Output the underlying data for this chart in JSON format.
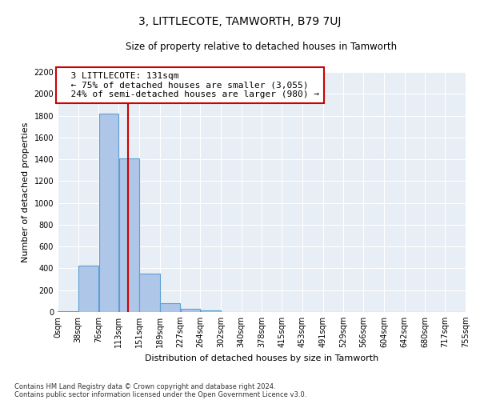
{
  "title": "3, LITTLECOTE, TAMWORTH, B79 7UJ",
  "subtitle": "Size of property relative to detached houses in Tamworth",
  "xlabel": "Distribution of detached houses by size in Tamworth",
  "ylabel": "Number of detached properties",
  "footer_line1": "Contains HM Land Registry data © Crown copyright and database right 2024.",
  "footer_line2": "Contains public sector information licensed under the Open Government Licence v3.0.",
  "annotation_line1": "3 LITTLECOTE: 131sqm",
  "annotation_line2": "← 75% of detached houses are smaller (3,055)",
  "annotation_line3": "24% of semi-detached houses are larger (980) →",
  "property_size": 131,
  "bin_edges": [
    0,
    38,
    76,
    113,
    151,
    189,
    227,
    264,
    302,
    340,
    378,
    415,
    453,
    491,
    529,
    566,
    604,
    642,
    680,
    717,
    755
  ],
  "bar_heights": [
    10,
    425,
    1820,
    1410,
    350,
    80,
    30,
    15,
    0,
    0,
    0,
    0,
    0,
    0,
    0,
    0,
    0,
    0,
    0,
    0
  ],
  "bar_color": "#aec6e8",
  "bar_edge_color": "#5c9fd4",
  "redline_color": "#cc0000",
  "background_color": "#e8eef5",
  "ylim": [
    0,
    2200
  ],
  "yticks": [
    0,
    200,
    400,
    600,
    800,
    1000,
    1200,
    1400,
    1600,
    1800,
    2000,
    2200
  ],
  "title_fontsize": 10,
  "subtitle_fontsize": 8.5,
  "ylabel_fontsize": 8,
  "xlabel_fontsize": 8,
  "tick_fontsize": 7,
  "footer_fontsize": 6
}
